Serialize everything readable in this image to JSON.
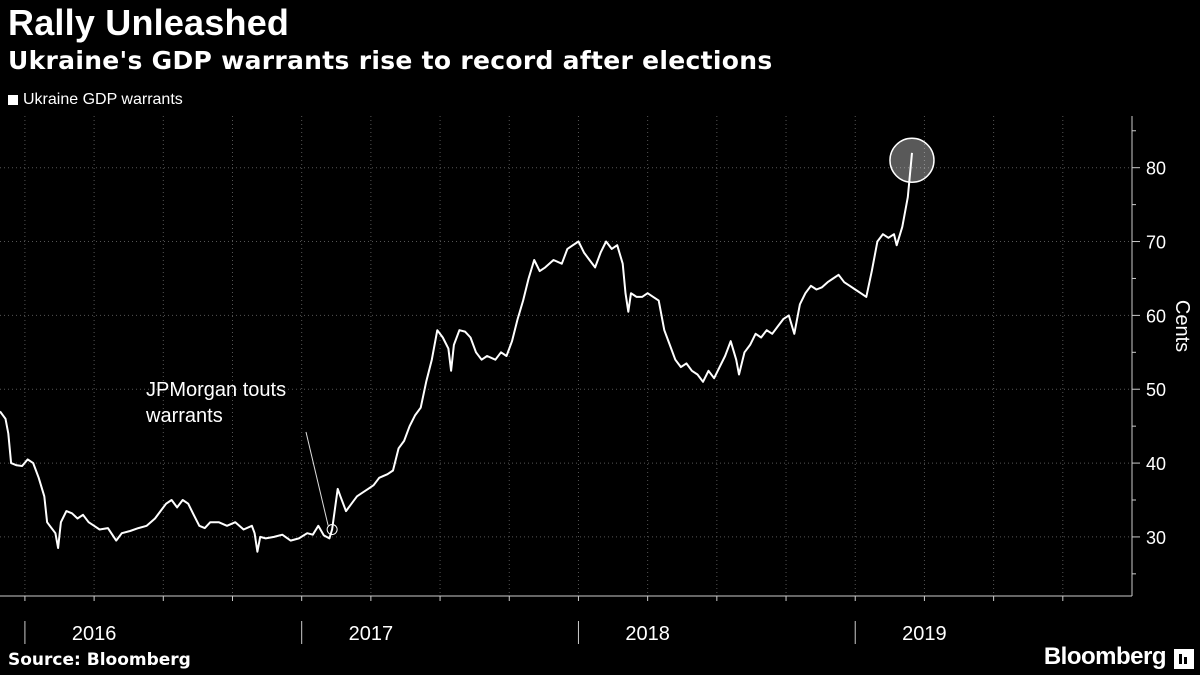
{
  "header": {
    "title": "Rally Unleashed",
    "subtitle": "Ukraine's GDP warrants rise to record after elections"
  },
  "footer": {
    "source": "Source: Bloomberg",
    "brand": "Bloomberg"
  },
  "chart_data": {
    "type": "line",
    "title": "Rally Unleashed",
    "subtitle": "Ukraine's GDP warrants rise to record after elections",
    "xlabel": "",
    "ylabel": "Cents",
    "ylim": [
      22,
      87
    ],
    "yticks": [
      30,
      40,
      50,
      60,
      70,
      80
    ],
    "xlim": [
      2015.66,
      2019.75
    ],
    "xticks": [
      2015.75,
      2016.0,
      2016.25,
      2016.5,
      2016.75,
      2017.0,
      2017.25,
      2017.5,
      2017.75,
      2018.0,
      2018.25,
      2018.5,
      2018.75,
      2019.0,
      2019.25,
      2019.5
    ],
    "year_labels": [
      {
        "label": "2016",
        "x": 2016.0
      },
      {
        "label": "2017",
        "x": 2017.0
      },
      {
        "label": "2018",
        "x": 2018.0
      },
      {
        "label": "2019",
        "x": 2019.0
      }
    ],
    "year_boundaries": [
      2015.75,
      2016.75,
      2017.75,
      2018.75
    ],
    "grid": true,
    "legend": "top-left",
    "series": [
      {
        "name": "Ukraine GDP warrants",
        "color": "#ffffff",
        "points": [
          [
            2015.66,
            47.0
          ],
          [
            2015.68,
            46.0
          ],
          [
            2015.69,
            44.0
          ],
          [
            2015.7,
            40.0
          ],
          [
            2015.72,
            39.7
          ],
          [
            2015.74,
            39.6
          ],
          [
            2015.76,
            40.5
          ],
          [
            2015.78,
            40.0
          ],
          [
            2015.8,
            38.0
          ],
          [
            2015.82,
            35.5
          ],
          [
            2015.83,
            32.0
          ],
          [
            2015.84,
            31.5
          ],
          [
            2015.86,
            30.5
          ],
          [
            2015.87,
            28.5
          ],
          [
            2015.88,
            32.0
          ],
          [
            2015.9,
            33.5
          ],
          [
            2015.92,
            33.2
          ],
          [
            2015.94,
            32.5
          ],
          [
            2015.96,
            33.0
          ],
          [
            2015.98,
            32.0
          ],
          [
            2016.0,
            31.5
          ],
          [
            2016.02,
            31.0
          ],
          [
            2016.05,
            31.2
          ],
          [
            2016.08,
            29.5
          ],
          [
            2016.1,
            30.5
          ],
          [
            2016.13,
            30.8
          ],
          [
            2016.16,
            31.2
          ],
          [
            2016.19,
            31.5
          ],
          [
            2016.22,
            32.5
          ],
          [
            2016.24,
            33.5
          ],
          [
            2016.26,
            34.5
          ],
          [
            2016.28,
            35.0
          ],
          [
            2016.3,
            34.0
          ],
          [
            2016.32,
            35.0
          ],
          [
            2016.34,
            34.5
          ],
          [
            2016.36,
            33.0
          ],
          [
            2016.38,
            31.5
          ],
          [
            2016.4,
            31.2
          ],
          [
            2016.42,
            32.0
          ],
          [
            2016.45,
            32.0
          ],
          [
            2016.48,
            31.5
          ],
          [
            2016.51,
            32.0
          ],
          [
            2016.54,
            31.0
          ],
          [
            2016.57,
            31.5
          ],
          [
            2016.58,
            30.5
          ],
          [
            2016.59,
            28.0
          ],
          [
            2016.6,
            30.0
          ],
          [
            2016.62,
            29.8
          ],
          [
            2016.65,
            30.0
          ],
          [
            2016.68,
            30.3
          ],
          [
            2016.71,
            29.5
          ],
          [
            2016.74,
            29.8
          ],
          [
            2016.77,
            30.5
          ],
          [
            2016.79,
            30.3
          ],
          [
            2016.81,
            31.5
          ],
          [
            2016.83,
            30.2
          ],
          [
            2016.85,
            29.8
          ],
          [
            2016.86,
            31.0
          ],
          [
            2016.88,
            36.5
          ],
          [
            2016.89,
            35.5
          ],
          [
            2016.91,
            33.5
          ],
          [
            2016.93,
            34.5
          ],
          [
            2016.95,
            35.5
          ],
          [
            2016.97,
            36.0
          ],
          [
            2016.99,
            36.5
          ],
          [
            2017.01,
            37.0
          ],
          [
            2017.03,
            38.0
          ],
          [
            2017.06,
            38.5
          ],
          [
            2017.08,
            39.0
          ],
          [
            2017.1,
            42.0
          ],
          [
            2017.12,
            43.0
          ],
          [
            2017.14,
            45.0
          ],
          [
            2017.16,
            46.5
          ],
          [
            2017.18,
            47.5
          ],
          [
            2017.2,
            51.0
          ],
          [
            2017.22,
            54.0
          ],
          [
            2017.24,
            58.0
          ],
          [
            2017.26,
            57.0
          ],
          [
            2017.28,
            55.5
          ],
          [
            2017.29,
            52.5
          ],
          [
            2017.3,
            56.0
          ],
          [
            2017.32,
            58.0
          ],
          [
            2017.34,
            57.8
          ],
          [
            2017.36,
            57.0
          ],
          [
            2017.38,
            55.0
          ],
          [
            2017.4,
            54.0
          ],
          [
            2017.42,
            54.5
          ],
          [
            2017.45,
            54.0
          ],
          [
            2017.47,
            55.0
          ],
          [
            2017.49,
            54.5
          ],
          [
            2017.51,
            56.5
          ],
          [
            2017.53,
            59.5
          ],
          [
            2017.55,
            62.0
          ],
          [
            2017.57,
            65.0
          ],
          [
            2017.59,
            67.5
          ],
          [
            2017.61,
            66.0
          ],
          [
            2017.63,
            66.5
          ],
          [
            2017.66,
            67.5
          ],
          [
            2017.69,
            67.0
          ],
          [
            2017.71,
            69.0
          ],
          [
            2017.73,
            69.5
          ],
          [
            2017.75,
            70.0
          ],
          [
            2017.77,
            68.5
          ],
          [
            2017.79,
            67.5
          ],
          [
            2017.81,
            66.5
          ],
          [
            2017.83,
            68.5
          ],
          [
            2017.85,
            70.0
          ],
          [
            2017.87,
            69.0
          ],
          [
            2017.89,
            69.5
          ],
          [
            2017.91,
            67.0
          ],
          [
            2017.92,
            63.0
          ],
          [
            2017.93,
            60.5
          ],
          [
            2017.94,
            63.0
          ],
          [
            2017.96,
            62.5
          ],
          [
            2017.98,
            62.5
          ],
          [
            2018.0,
            63.0
          ],
          [
            2018.02,
            62.5
          ],
          [
            2018.04,
            62.0
          ],
          [
            2018.06,
            58.0
          ],
          [
            2018.08,
            56.0
          ],
          [
            2018.1,
            54.0
          ],
          [
            2018.12,
            53.0
          ],
          [
            2018.14,
            53.5
          ],
          [
            2018.16,
            52.5
          ],
          [
            2018.18,
            52.0
          ],
          [
            2018.2,
            51.0
          ],
          [
            2018.22,
            52.5
          ],
          [
            2018.24,
            51.5
          ],
          [
            2018.26,
            53.0
          ],
          [
            2018.28,
            54.5
          ],
          [
            2018.3,
            56.5
          ],
          [
            2018.32,
            54.0
          ],
          [
            2018.33,
            52.0
          ],
          [
            2018.35,
            55.0
          ],
          [
            2018.37,
            56.0
          ],
          [
            2018.39,
            57.5
          ],
          [
            2018.41,
            57.0
          ],
          [
            2018.43,
            58.0
          ],
          [
            2018.45,
            57.5
          ],
          [
            2018.47,
            58.5
          ],
          [
            2018.49,
            59.5
          ],
          [
            2018.51,
            60.0
          ],
          [
            2018.53,
            57.5
          ],
          [
            2018.55,
            61.5
          ],
          [
            2018.57,
            63.0
          ],
          [
            2018.59,
            64.0
          ],
          [
            2018.61,
            63.5
          ],
          [
            2018.63,
            63.8
          ],
          [
            2018.65,
            64.5
          ],
          [
            2018.67,
            65.0
          ],
          [
            2018.69,
            65.5
          ],
          [
            2018.71,
            64.5
          ],
          [
            2018.73,
            64.0
          ],
          [
            2018.75,
            63.5
          ],
          [
            2018.77,
            63.0
          ],
          [
            2018.79,
            62.5
          ],
          [
            2018.81,
            66.0
          ],
          [
            2018.83,
            70.0
          ],
          [
            2018.85,
            71.0
          ],
          [
            2018.87,
            70.5
          ],
          [
            2018.89,
            71.0
          ],
          [
            2018.9,
            69.5
          ],
          [
            2018.92,
            72.0
          ],
          [
            2018.94,
            76.0
          ],
          [
            2018.955,
            82.0
          ]
        ]
      }
    ],
    "annotations": [
      {
        "text_lines": [
          "JPMorgan touts",
          "warrants"
        ],
        "x": 2016.86,
        "y": 31.0
      },
      {
        "text_lines": [],
        "x": 2018.955,
        "y": 81.0,
        "type": "circle-highlight"
      }
    ]
  }
}
